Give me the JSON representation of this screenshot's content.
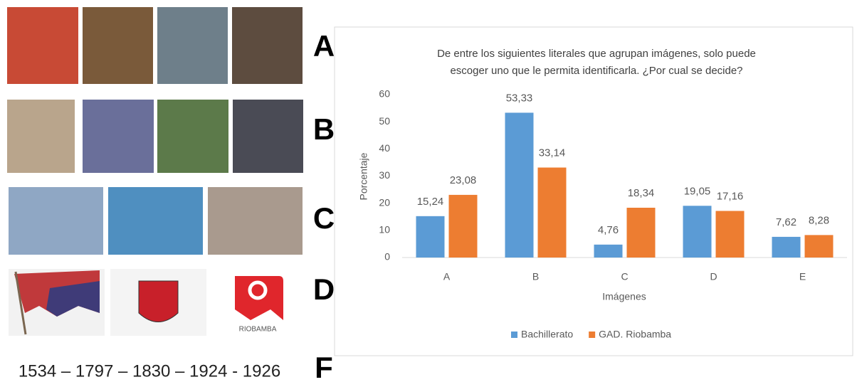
{
  "panel": {
    "labels": [
      "A",
      "B",
      "C",
      "D",
      "F"
    ],
    "logo_text": "RIOBAMBA",
    "years": "1534 – 1797 – 1830 – 1924 - 1926"
  },
  "chart_data": {
    "type": "bar",
    "title": [
      "De entre los siguientes literales que agrupan imágenes, solo puede",
      "escoger uno que le permita identificarla. ¿Por cual se decide?"
    ],
    "x_label": "Imágenes",
    "y_label": "Porcentaje",
    "categories": [
      "A",
      "B",
      "C",
      "D",
      "E"
    ],
    "series": [
      {
        "name": "Bachillerato",
        "color": "#5b9bd5",
        "values": [
          15.24,
          53.33,
          4.76,
          19.05,
          7.62
        ],
        "value_labels": [
          "15,24",
          "53,33",
          "4,76",
          "19,05",
          "7,62"
        ]
      },
      {
        "name": "GAD. Riobamba",
        "color": "#ed7d31",
        "values": [
          23.08,
          33.14,
          18.34,
          17.16,
          8.28
        ],
        "value_labels": [
          "23,08",
          "33,14",
          "18,34",
          "17,16",
          "8,28"
        ]
      }
    ],
    "ylim": [
      0,
      60
    ],
    "yticks": [
      0,
      10,
      20,
      30,
      40,
      50,
      60
    ],
    "grid": false,
    "legend": "bottom"
  }
}
